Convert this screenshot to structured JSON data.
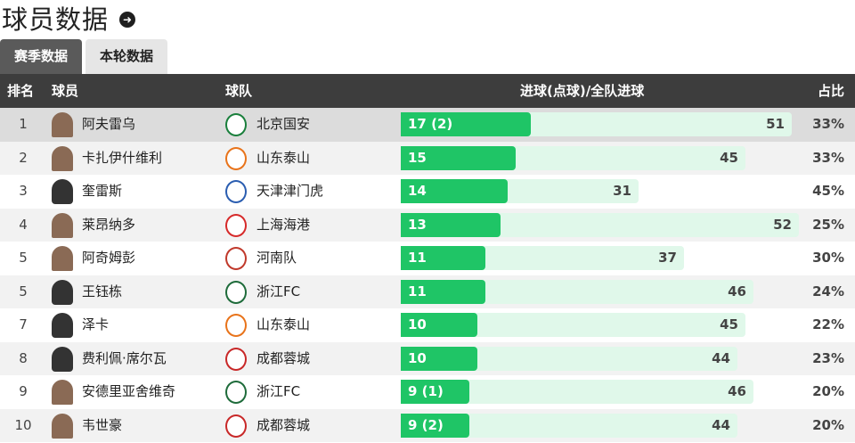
{
  "page": {
    "title": "球员数据"
  },
  "tabs": [
    {
      "label": "赛季数据",
      "active": true
    },
    {
      "label": "本轮数据",
      "active": false
    }
  ],
  "table": {
    "headers": {
      "rank": "排名",
      "player": "球员",
      "team": "球队",
      "goals": "进球(点球)/全队进球",
      "pct": "占比"
    },
    "rows": [
      {
        "rank": "1",
        "player": "阿夫雷乌",
        "team": "北京国安",
        "goals": 17,
        "goals_label": "17 (2)",
        "team_goals": 51,
        "pct": "33%",
        "avatar": "photo",
        "logo_color": "#1a7f3c"
      },
      {
        "rank": "2",
        "player": "卡扎伊什维利",
        "team": "山东泰山",
        "goals": 15,
        "goals_label": "15",
        "team_goals": 45,
        "pct": "33%",
        "avatar": "photo",
        "logo_color": "#e8731a"
      },
      {
        "rank": "3",
        "player": "奎雷斯",
        "team": "天津津门虎",
        "goals": 14,
        "goals_label": "14",
        "team_goals": 31,
        "pct": "45%",
        "avatar": "generic",
        "logo_color": "#2a5db0"
      },
      {
        "rank": "4",
        "player": "莱昂纳多",
        "team": "上海海港",
        "goals": 13,
        "goals_label": "13",
        "team_goals": 52,
        "pct": "25%",
        "avatar": "photo",
        "logo_color": "#d62a2a"
      },
      {
        "rank": "5",
        "player": "阿奇姆彭",
        "team": "河南队",
        "goals": 11,
        "goals_label": "11",
        "team_goals": 37,
        "pct": "30%",
        "avatar": "photo",
        "logo_color": "#c0392b"
      },
      {
        "rank": "5",
        "player": "王钰栋",
        "team": "浙江FC",
        "goals": 11,
        "goals_label": "11",
        "team_goals": 46,
        "pct": "24%",
        "avatar": "generic",
        "logo_color": "#1e6b3a"
      },
      {
        "rank": "7",
        "player": "泽卡",
        "team": "山东泰山",
        "goals": 10,
        "goals_label": "10",
        "team_goals": 45,
        "pct": "22%",
        "avatar": "generic",
        "logo_color": "#e8731a"
      },
      {
        "rank": "8",
        "player": "费利佩·席尔瓦",
        "team": "成都蓉城",
        "goals": 10,
        "goals_label": "10",
        "team_goals": 44,
        "pct": "23%",
        "avatar": "generic",
        "logo_color": "#c82828"
      },
      {
        "rank": "9",
        "player": "安德里亚舍维奇",
        "team": "浙江FC",
        "goals": 9,
        "goals_label": "9 (1)",
        "team_goals": 46,
        "pct": "20%",
        "avatar": "photo",
        "logo_color": "#1e6b3a"
      },
      {
        "rank": "10",
        "player": "韦世豪",
        "team": "成都蓉城",
        "goals": 9,
        "goals_label": "9 (2)",
        "team_goals": 44,
        "pct": "20%",
        "avatar": "photo",
        "logo_color": "#c82828"
      }
    ]
  }
}
